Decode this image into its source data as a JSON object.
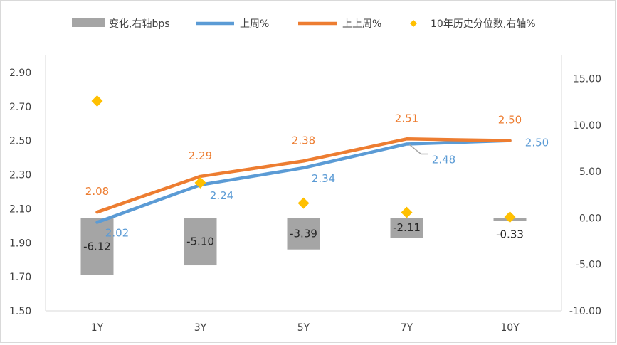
{
  "chart_data": {
    "type": "bar+line",
    "categories": [
      "1Y",
      "3Y",
      "5Y",
      "7Y",
      "10Y"
    ],
    "left_axis": {
      "ylim": [
        1.5,
        3.0
      ],
      "ticks": [
        "1.50",
        "1.70",
        "1.90",
        "2.10",
        "2.30",
        "2.50",
        "2.70",
        "2.90"
      ]
    },
    "right_axis": {
      "ylim": [
        -10,
        17.5
      ],
      "ticks": [
        "-10.00",
        "-5.00",
        "0.00",
        "5.00",
        "10.00",
        "15.00"
      ]
    },
    "series": [
      {
        "name": "变化,右轴bps",
        "kind": "bar",
        "axis": "right",
        "color": "#a5a5a5",
        "values": [
          -6.12,
          -5.1,
          -3.39,
          -2.11,
          -0.33
        ],
        "labels": [
          "-6.12",
          "-5.10",
          "-3.39",
          "-2.11",
          "-0.33"
        ]
      },
      {
        "name": "上周%",
        "kind": "line",
        "axis": "left",
        "color": "#5b9bd5",
        "values": [
          2.02,
          2.24,
          2.34,
          2.48,
          2.5
        ],
        "labels": [
          "2.02",
          "2.24",
          "2.34",
          "2.48",
          "2.50"
        ]
      },
      {
        "name": "上上周%",
        "kind": "line",
        "axis": "left",
        "color": "#ed7d31",
        "values": [
          2.08,
          2.29,
          2.38,
          2.51,
          2.5
        ],
        "labels": [
          "2.08",
          "2.29",
          "2.38",
          "2.51",
          "2.50"
        ]
      },
      {
        "name": "10年历史分位数,右轴%",
        "kind": "scatter",
        "axis": "right",
        "color": "#ffc000",
        "values": [
          12.6,
          3.8,
          1.6,
          0.6,
          0.1
        ]
      }
    ],
    "grid": false,
    "legend": "top"
  }
}
